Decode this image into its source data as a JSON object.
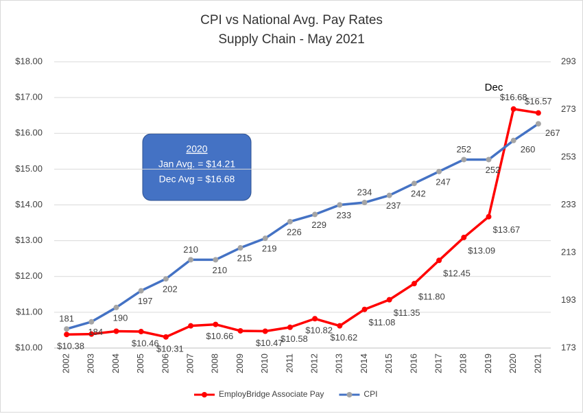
{
  "chart_data": {
    "type": "line",
    "title": "CPI vs National Avg. Pay Rates",
    "subtitle": "Supply Chain - May 2021",
    "categories": [
      "2002",
      "2003",
      "2004",
      "2005",
      "2006",
      "2007",
      "2008",
      "2009",
      "2010",
      "2011",
      "2012",
      "2013",
      "2014",
      "2015",
      "2016",
      "2017",
      "2018",
      "2019",
      "2020",
      "2021"
    ],
    "series": [
      {
        "name": "EmployBridge Associate Pay",
        "color": "#ff0000",
        "marker_color": "#ff0000",
        "axis": "y",
        "values": [
          10.38,
          10.39,
          10.47,
          10.46,
          10.31,
          10.62,
          10.66,
          10.48,
          10.47,
          10.58,
          10.82,
          10.62,
          11.08,
          11.35,
          11.8,
          12.45,
          13.09,
          13.67,
          16.68,
          16.57
        ],
        "value_labels": [
          "$10.38",
          null,
          null,
          "$10.46",
          "$10.31",
          null,
          "$10.66",
          null,
          "$10.47",
          "$10.58",
          "$10.82",
          "$10.62",
          "$11.08",
          "$11.35",
          "$11.80",
          "$12.45",
          "$13.09",
          "$13.67",
          "$16.68",
          "$16.57"
        ]
      },
      {
        "name": "CPI",
        "color": "#4472c4",
        "marker_color": "#a5a5a5",
        "axis": "y2",
        "values": [
          181,
          184,
          190,
          197,
          202,
          210,
          210,
          215,
          219,
          226,
          229,
          233,
          234,
          237,
          242,
          247,
          252,
          252,
          260,
          267
        ]
      }
    ],
    "ylim": [
      10,
      18
    ],
    "yticks": [
      {
        "value": 10,
        "label": "$10.00"
      },
      {
        "value": 11,
        "label": "$11.00"
      },
      {
        "value": 12,
        "label": "$12.00"
      },
      {
        "value": 13,
        "label": "$13.00"
      },
      {
        "value": 14,
        "label": "$14.00"
      },
      {
        "value": 15,
        "label": "$15.00"
      },
      {
        "value": 16,
        "label": "$16.00"
      },
      {
        "value": 17,
        "label": "$17.00"
      },
      {
        "value": 18,
        "label": "$18.00"
      }
    ],
    "y2lim": [
      173,
      293
    ],
    "y2ticks": [
      173,
      193,
      213,
      233,
      253,
      273,
      293
    ],
    "grid": true,
    "legend": "bottom",
    "annotations": {
      "dec": "Dec",
      "box_title": "2020",
      "box_line1": "Jan Avg. = $14.21",
      "box_line2": "Dec Avg = $16.68"
    }
  }
}
